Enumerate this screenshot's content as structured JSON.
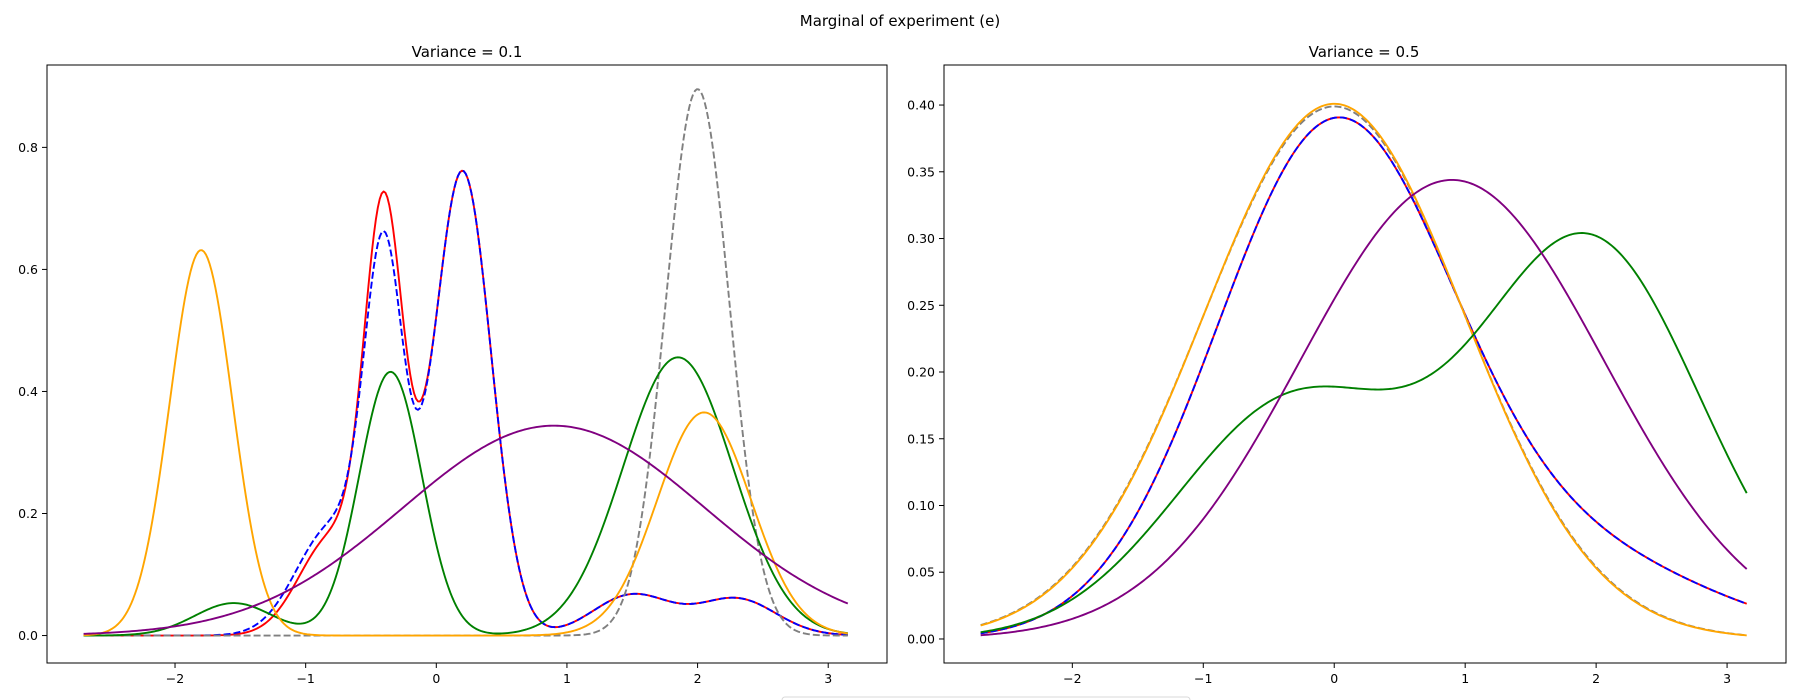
{
  "figure": {
    "suptitle": "Marginal of experiment (e)"
  },
  "chart_data": [
    {
      "type": "line",
      "title": "Variance = 0.1",
      "xlabel": "",
      "ylabel": "",
      "xlim": [
        -2.98,
        3.45
      ],
      "ylim": [
        -0.045,
        0.935
      ],
      "xticks": [
        -2,
        -1,
        0,
        1,
        2,
        3
      ],
      "xtick_labels": [
        "−2",
        "−1",
        "0",
        "1",
        "2",
        "3"
      ],
      "yticks": [
        0.0,
        0.2,
        0.4,
        0.6,
        0.8
      ],
      "ytick_labels": [
        "0.0",
        "0.2",
        "0.4",
        "0.6",
        "0.8"
      ],
      "grid": false,
      "x_range": [
        -2.7,
        3.15
      ],
      "series": [
        {
          "color": "#ff0000",
          "dash": "solid",
          "components": [
            {
              "w": 0.1,
              "m": -0.8,
              "s": 0.25
            },
            {
              "w": 0.25,
              "m": -0.4,
              "s": 0.15
            },
            {
              "w": 0.42,
              "m": 0.2,
              "s": 0.22
            },
            {
              "w": 0.05,
              "m": 1.5,
              "s": 0.3
            },
            {
              "w": 0.045,
              "m": 2.3,
              "s": 0.3
            }
          ]
        },
        {
          "color": "#0000ff",
          "dash": "dashed",
          "components": [
            {
              "w": 0.12,
              "m": -0.8,
              "s": 0.27
            },
            {
              "w": 0.22,
              "m": -0.4,
              "s": 0.15
            },
            {
              "w": 0.42,
              "m": 0.2,
              "s": 0.22
            },
            {
              "w": 0.05,
              "m": 1.5,
              "s": 0.3
            },
            {
              "w": 0.045,
              "m": 2.3,
              "s": 0.3
            }
          ]
        },
        {
          "color": "#808080",
          "dash": "dashed",
          "components": [
            {
              "w": 0.55,
              "m": 2.0,
              "s": 0.245
            }
          ]
        },
        {
          "color": "#008000",
          "dash": "solid",
          "components": [
            {
              "w": 0.04,
              "m": -1.55,
              "s": 0.3
            },
            {
              "w": 0.26,
              "m": -0.35,
              "s": 0.24
            },
            {
              "w": 0.48,
              "m": 1.85,
              "s": 0.42
            }
          ]
        },
        {
          "color": "#ffa500",
          "dash": "solid",
          "components": [
            {
              "w": 0.38,
              "m": -1.8,
              "s": 0.24
            },
            {
              "w": 0.33,
              "m": 2.05,
              "s": 0.36
            }
          ]
        },
        {
          "color": "#800080",
          "dash": "solid",
          "components": [
            {
              "w": 1.0,
              "m": 0.9,
              "s": 1.16
            }
          ]
        }
      ]
    },
    {
      "type": "line",
      "title": "Variance = 0.5",
      "xlabel": "",
      "ylabel": "",
      "xlim": [
        -2.98,
        3.45
      ],
      "ylim": [
        -0.018,
        0.43
      ],
      "xticks": [
        -2,
        -1,
        0,
        1,
        2,
        3
      ],
      "xtick_labels": [
        "−2",
        "−1",
        "0",
        "1",
        "2",
        "3"
      ],
      "yticks": [
        0.0,
        0.05,
        0.1,
        0.15,
        0.2,
        0.25,
        0.3,
        0.35,
        0.4
      ],
      "ytick_labels": [
        "0.00",
        "0.05",
        "0.10",
        "0.15",
        "0.20",
        "0.25",
        "0.30",
        "0.35",
        "0.40"
      ],
      "grid": false,
      "x_range": [
        -2.7,
        3.15
      ],
      "series": [
        {
          "color": "#ff0000",
          "dash": "solid",
          "components": [
            {
              "w": 0.86,
              "m": 0.0,
              "s": 0.9
            },
            {
              "w": 0.14,
              "m": 1.9,
              "s": 1.0
            }
          ]
        },
        {
          "color": "#0000ff",
          "dash": "dashed",
          "components": [
            {
              "w": 0.86,
              "m": 0.0,
              "s": 0.9
            },
            {
              "w": 0.14,
              "m": 1.9,
              "s": 1.0
            }
          ]
        },
        {
          "color": "#808080",
          "dash": "dashed",
          "components": [
            {
              "w": 1.0,
              "m": 0.0,
              "s": 1.0
            }
          ]
        },
        {
          "color": "#ffa500",
          "dash": "solid",
          "components": [
            {
              "w": 1.0,
              "m": 0.0,
              "s": 0.995
            }
          ]
        },
        {
          "color": "#008000",
          "dash": "solid",
          "components": [
            {
              "w": 0.4,
              "m": -0.3,
              "s": 0.9
            },
            {
              "w": 0.63,
              "m": 1.95,
              "s": 0.85
            }
          ]
        },
        {
          "color": "#800080",
          "dash": "solid",
          "components": [
            {
              "w": 1.0,
              "m": 0.9,
              "s": 1.16
            }
          ]
        }
      ]
    }
  ]
}
